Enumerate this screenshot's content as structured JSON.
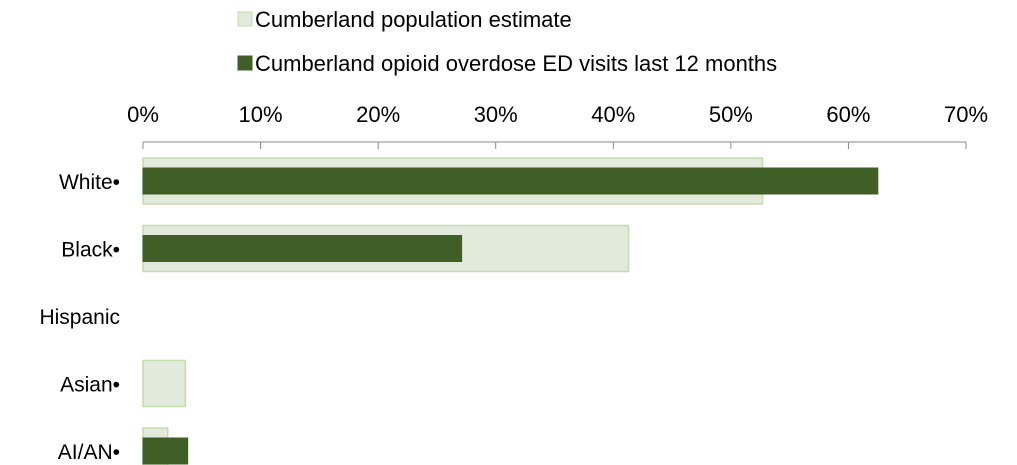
{
  "chart_data": {
    "type": "bar",
    "orientation": "horizontal",
    "categories": [
      "White•",
      "Black•",
      "Hispanic",
      "Asian•",
      "AI/AN•"
    ],
    "series": [
      {
        "name": "Cumberland population estimate",
        "color": "#e2ebdb",
        "border_color": "#c5dbb0",
        "values": [
          52.7,
          41.3,
          0,
          3.6,
          2.1
        ]
      },
      {
        "name": "Cumberland opioid overdose ED visits last 12 months",
        "color": "#3f5f26",
        "border_color": "#3f5f26",
        "values": [
          62.5,
          27.1,
          0,
          0,
          3.8
        ]
      }
    ],
    "xaxis": {
      "min": 0,
      "max": 70,
      "step": 10,
      "tick_labels": [
        "0%",
        "10%",
        "20%",
        "30%",
        "40%",
        "50%",
        "60%",
        "70%"
      ],
      "position": "top"
    },
    "legend": {
      "position": "top"
    },
    "grid": false
  }
}
